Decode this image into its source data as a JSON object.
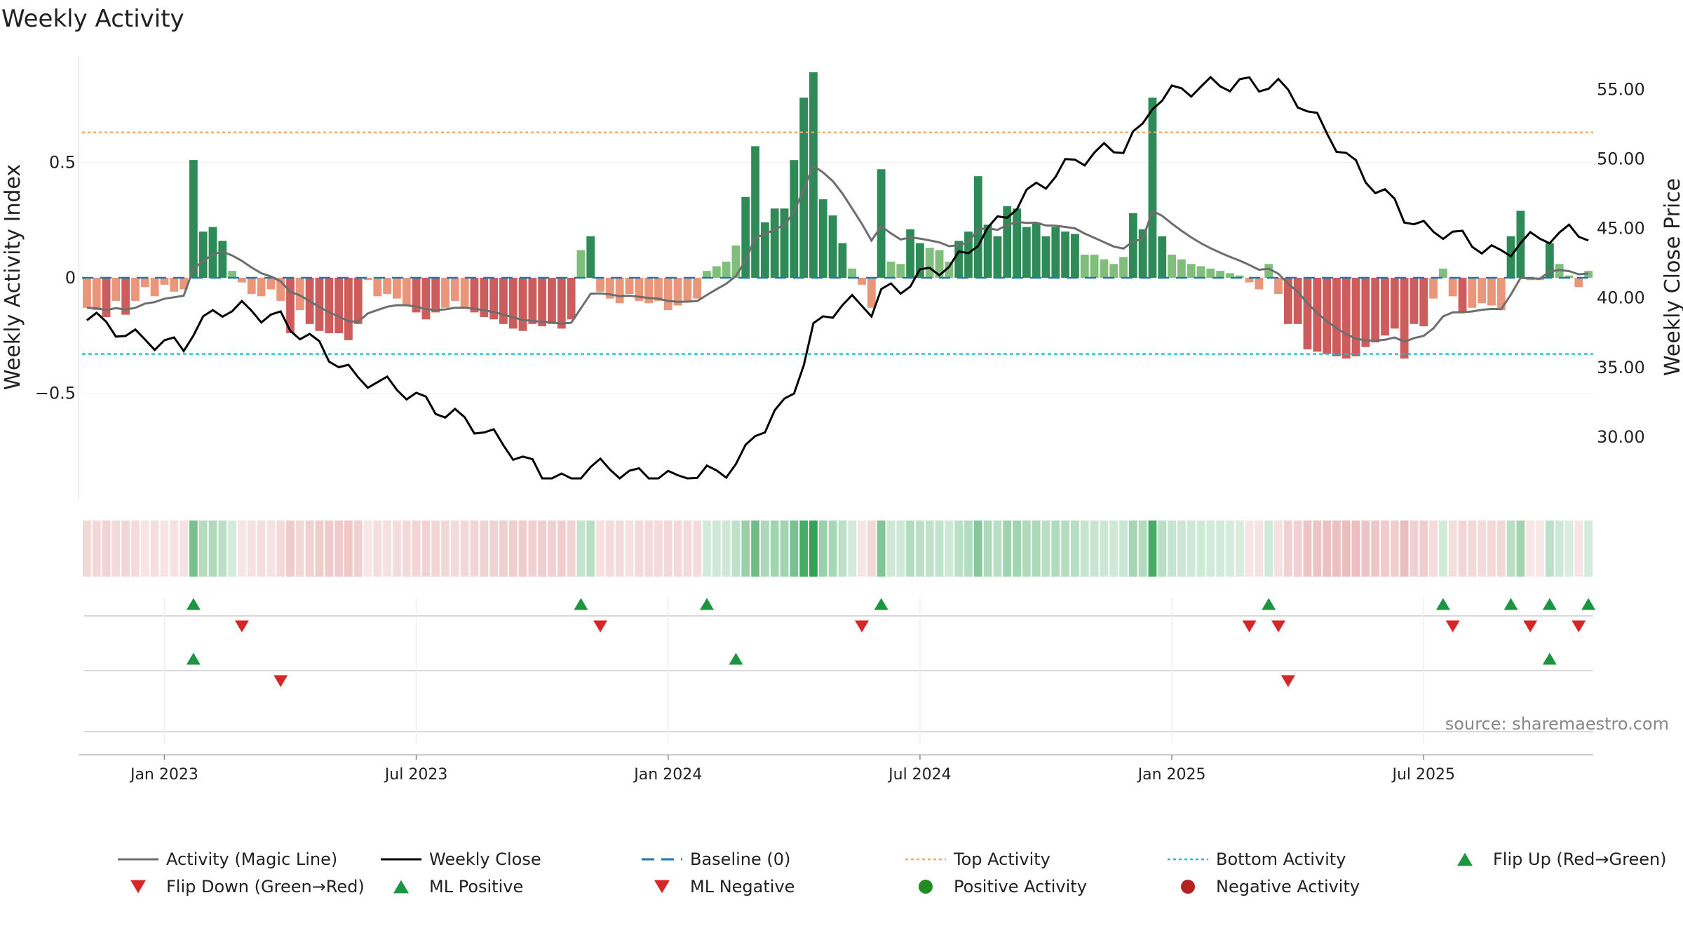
{
  "chart_data": {
    "type": "bar",
    "title": "Weekly Activity",
    "ylabel_left": "Weekly Activity Index",
    "ylabel_right": "Weekly Close Price",
    "source": "source: sharemaestro.com",
    "y_left": {
      "ticks": [
        0.5,
        0,
        -0.5
      ],
      "tick_labels": [
        "0.5",
        "0",
        "−0.5"
      ],
      "range": [
        -0.96,
        0.96
      ]
    },
    "y_right": {
      "ticks": [
        55,
        50,
        45,
        40,
        35,
        30
      ],
      "tick_labels": [
        "55.00",
        "50.00",
        "45.00",
        "40.00",
        "35.00",
        "30.00"
      ],
      "range": [
        25.5,
        57.4
      ]
    },
    "x_labels": [
      "Jan 2023",
      "Jul 2023",
      "Jan 2024",
      "Jul 2024",
      "Jan 2025",
      "Jul 2025"
    ],
    "x_label_weeks": [
      8,
      34,
      60,
      86,
      112,
      138
    ],
    "thresholds": {
      "top_activity": 0.63,
      "bottom_activity": -0.33,
      "baseline": 0
    },
    "activity": [
      -0.13,
      -0.14,
      -0.17,
      -0.1,
      -0.16,
      -0.1,
      -0.04,
      -0.08,
      -0.03,
      -0.06,
      -0.05,
      0.51,
      0.2,
      0.22,
      0.16,
      0.03,
      -0.02,
      -0.07,
      -0.08,
      -0.05,
      -0.1,
      -0.24,
      -0.14,
      -0.2,
      -0.23,
      -0.24,
      -0.24,
      -0.27,
      -0.2,
      -0.01,
      -0.08,
      -0.07,
      -0.09,
      -0.12,
      -0.15,
      -0.18,
      -0.15,
      -0.13,
      -0.1,
      -0.13,
      -0.15,
      -0.17,
      -0.18,
      -0.2,
      -0.22,
      -0.23,
      -0.2,
      -0.21,
      -0.2,
      -0.22,
      -0.18,
      0.12,
      0.18,
      -0.06,
      -0.09,
      -0.11,
      -0.07,
      -0.1,
      -0.11,
      -0.1,
      -0.14,
      -0.12,
      -0.1,
      -0.09,
      0.03,
      0.05,
      0.07,
      0.14,
      0.35,
      0.57,
      0.24,
      0.3,
      0.3,
      0.51,
      0.78,
      0.89,
      0.34,
      0.27,
      0.15,
      0.04,
      -0.03,
      -0.13,
      0.47,
      0.07,
      0.06,
      0.21,
      0.15,
      0.13,
      0.12,
      0.07,
      0.16,
      0.2,
      0.44,
      0.23,
      0.18,
      0.31,
      0.3,
      0.22,
      0.24,
      0.18,
      0.22,
      0.2,
      0.19,
      0.1,
      0.1,
      0.08,
      0.06,
      0.09,
      0.28,
      0.21,
      0.78,
      0.18,
      0.1,
      0.08,
      0.06,
      0.05,
      0.04,
      0.03,
      0.02,
      0.01,
      -0.02,
      -0.05,
      0.06,
      -0.07,
      -0.2,
      -0.2,
      -0.31,
      -0.32,
      -0.33,
      -0.34,
      -0.35,
      -0.34,
      -0.3,
      -0.28,
      -0.25,
      -0.22,
      -0.35,
      -0.2,
      -0.21,
      -0.09,
      0.04,
      -0.08,
      -0.15,
      -0.13,
      -0.11,
      -0.12,
      -0.14,
      0.18,
      0.29,
      -0.01,
      -0.01,
      0.15,
      0.06,
      0.01,
      -0.04,
      0.03
    ]
  },
  "legend": [
    {
      "label": "Activity (Magic Line)",
      "kind": "line",
      "color": "#6e6e6e"
    },
    {
      "label": "Weekly Close",
      "kind": "line",
      "color": "#000000"
    },
    {
      "label": "Baseline (0)",
      "kind": "dash",
      "color": "#1f77b4"
    },
    {
      "label": "Top Activity",
      "kind": "dot",
      "color": "#f4a460"
    },
    {
      "label": "Bottom Activity",
      "kind": "dot",
      "color": "#17becf"
    },
    {
      "label": "Flip Up (Red→Green)",
      "kind": "tri-up",
      "color": "#1a9641"
    },
    {
      "label": "Flip Down (Green→Red)",
      "kind": "tri-down",
      "color": "#d62728"
    },
    {
      "label": "ML Positive",
      "kind": "tri-up",
      "color": "#1a9641"
    },
    {
      "label": "ML Negative",
      "kind": "tri-down",
      "color": "#d62728"
    },
    {
      "label": "Positive Activity",
      "kind": "circle",
      "color": "#228b22"
    },
    {
      "label": "Negative Activity",
      "kind": "circle",
      "color": "#b22222"
    }
  ],
  "colors": {
    "pos_dark": "#2e8b57",
    "pos_light": "#7fbf7b",
    "neg_dark": "#cd5c5c",
    "neg_light": "#e9967a",
    "magic": "#6e6e6e",
    "close": "#000000",
    "baseline": "#1f77b4",
    "top": "#f4a460",
    "bottom": "#17becf",
    "up": "#1a9641",
    "down": "#d62728"
  }
}
